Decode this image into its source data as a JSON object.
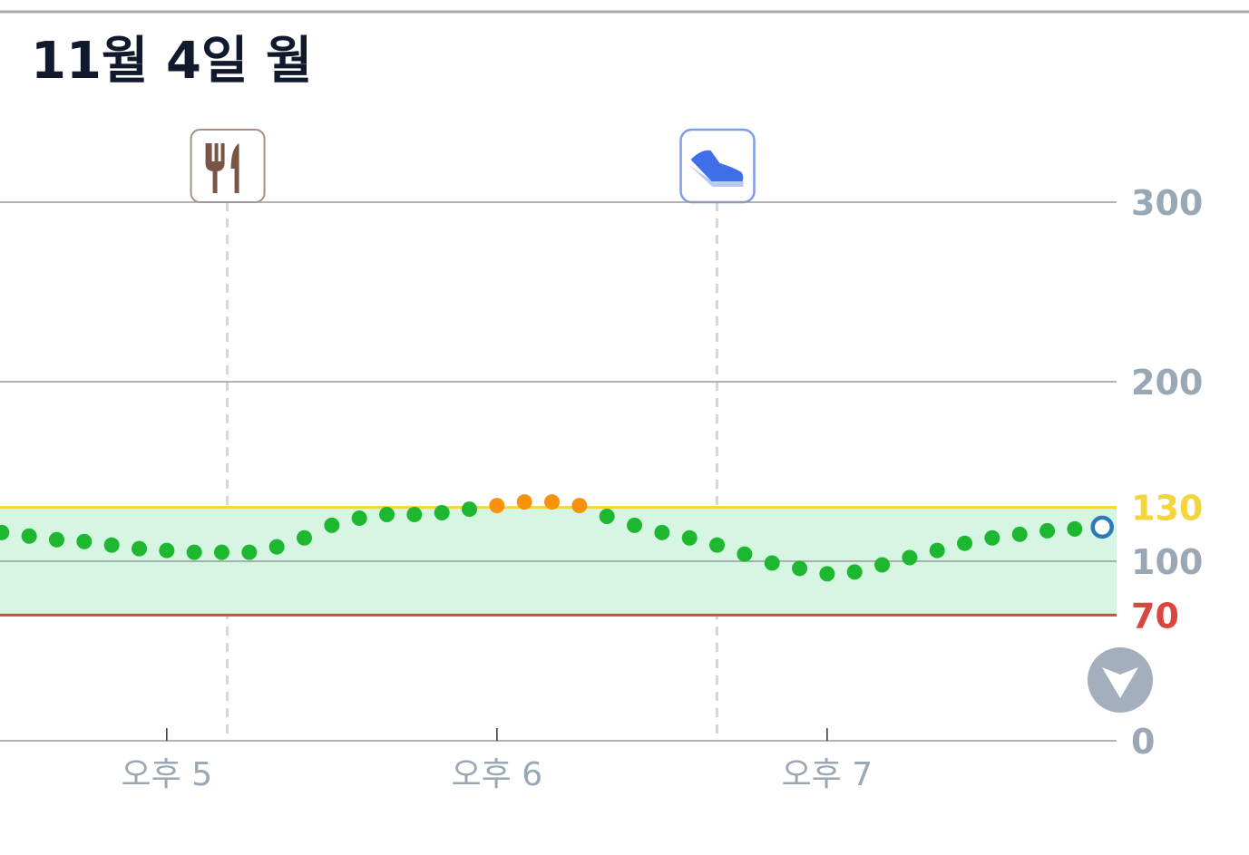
{
  "chart_data": {
    "type": "scatter",
    "title": "11월 4일 월",
    "x": [
      990,
      995,
      1000,
      1005,
      1010,
      1015,
      1020,
      1025,
      1030,
      1035,
      1040,
      1045,
      1050,
      1055,
      1060,
      1065,
      1070,
      1075,
      1080,
      1085,
      1090,
      1095,
      1100,
      1105,
      1110,
      1115,
      1120,
      1125,
      1130,
      1135,
      1140,
      1145,
      1150,
      1155,
      1160,
      1165,
      1170,
      1175,
      1180,
      1185,
      1190
    ],
    "series": [
      {
        "color": "#1db82f",
        "high_color": "#f7920f",
        "current_color": "#2f7ab8",
        "values": [
          116,
          114,
          112,
          111,
          109,
          107,
          106,
          105,
          105,
          105,
          108,
          113,
          120,
          124,
          126,
          126,
          127,
          129,
          131,
          133,
          133,
          131,
          125,
          120,
          116,
          113,
          109,
          104,
          99,
          96,
          93,
          94,
          98,
          102,
          106,
          110,
          113,
          115,
          117,
          118,
          119
        ]
      }
    ],
    "xlim": [
      989.7,
      1192.6
    ],
    "xticks": [
      {
        "value": 1020,
        "label": "오후 5"
      },
      {
        "value": 1080,
        "label": "오후 6"
      },
      {
        "value": 1140,
        "label": "오후 7"
      }
    ],
    "ylim": [
      0,
      300
    ],
    "yticks": [
      0,
      100,
      200,
      300
    ],
    "grid": true,
    "thresholds": [
      {
        "value": 130,
        "color": "#f5d53a"
      },
      {
        "value": 70,
        "color": "#d9473f"
      }
    ],
    "band_color": "#d6f5e2",
    "events": [
      {
        "type": "meal",
        "x": 1031
      },
      {
        "type": "exercise",
        "x": 1120
      }
    ]
  }
}
